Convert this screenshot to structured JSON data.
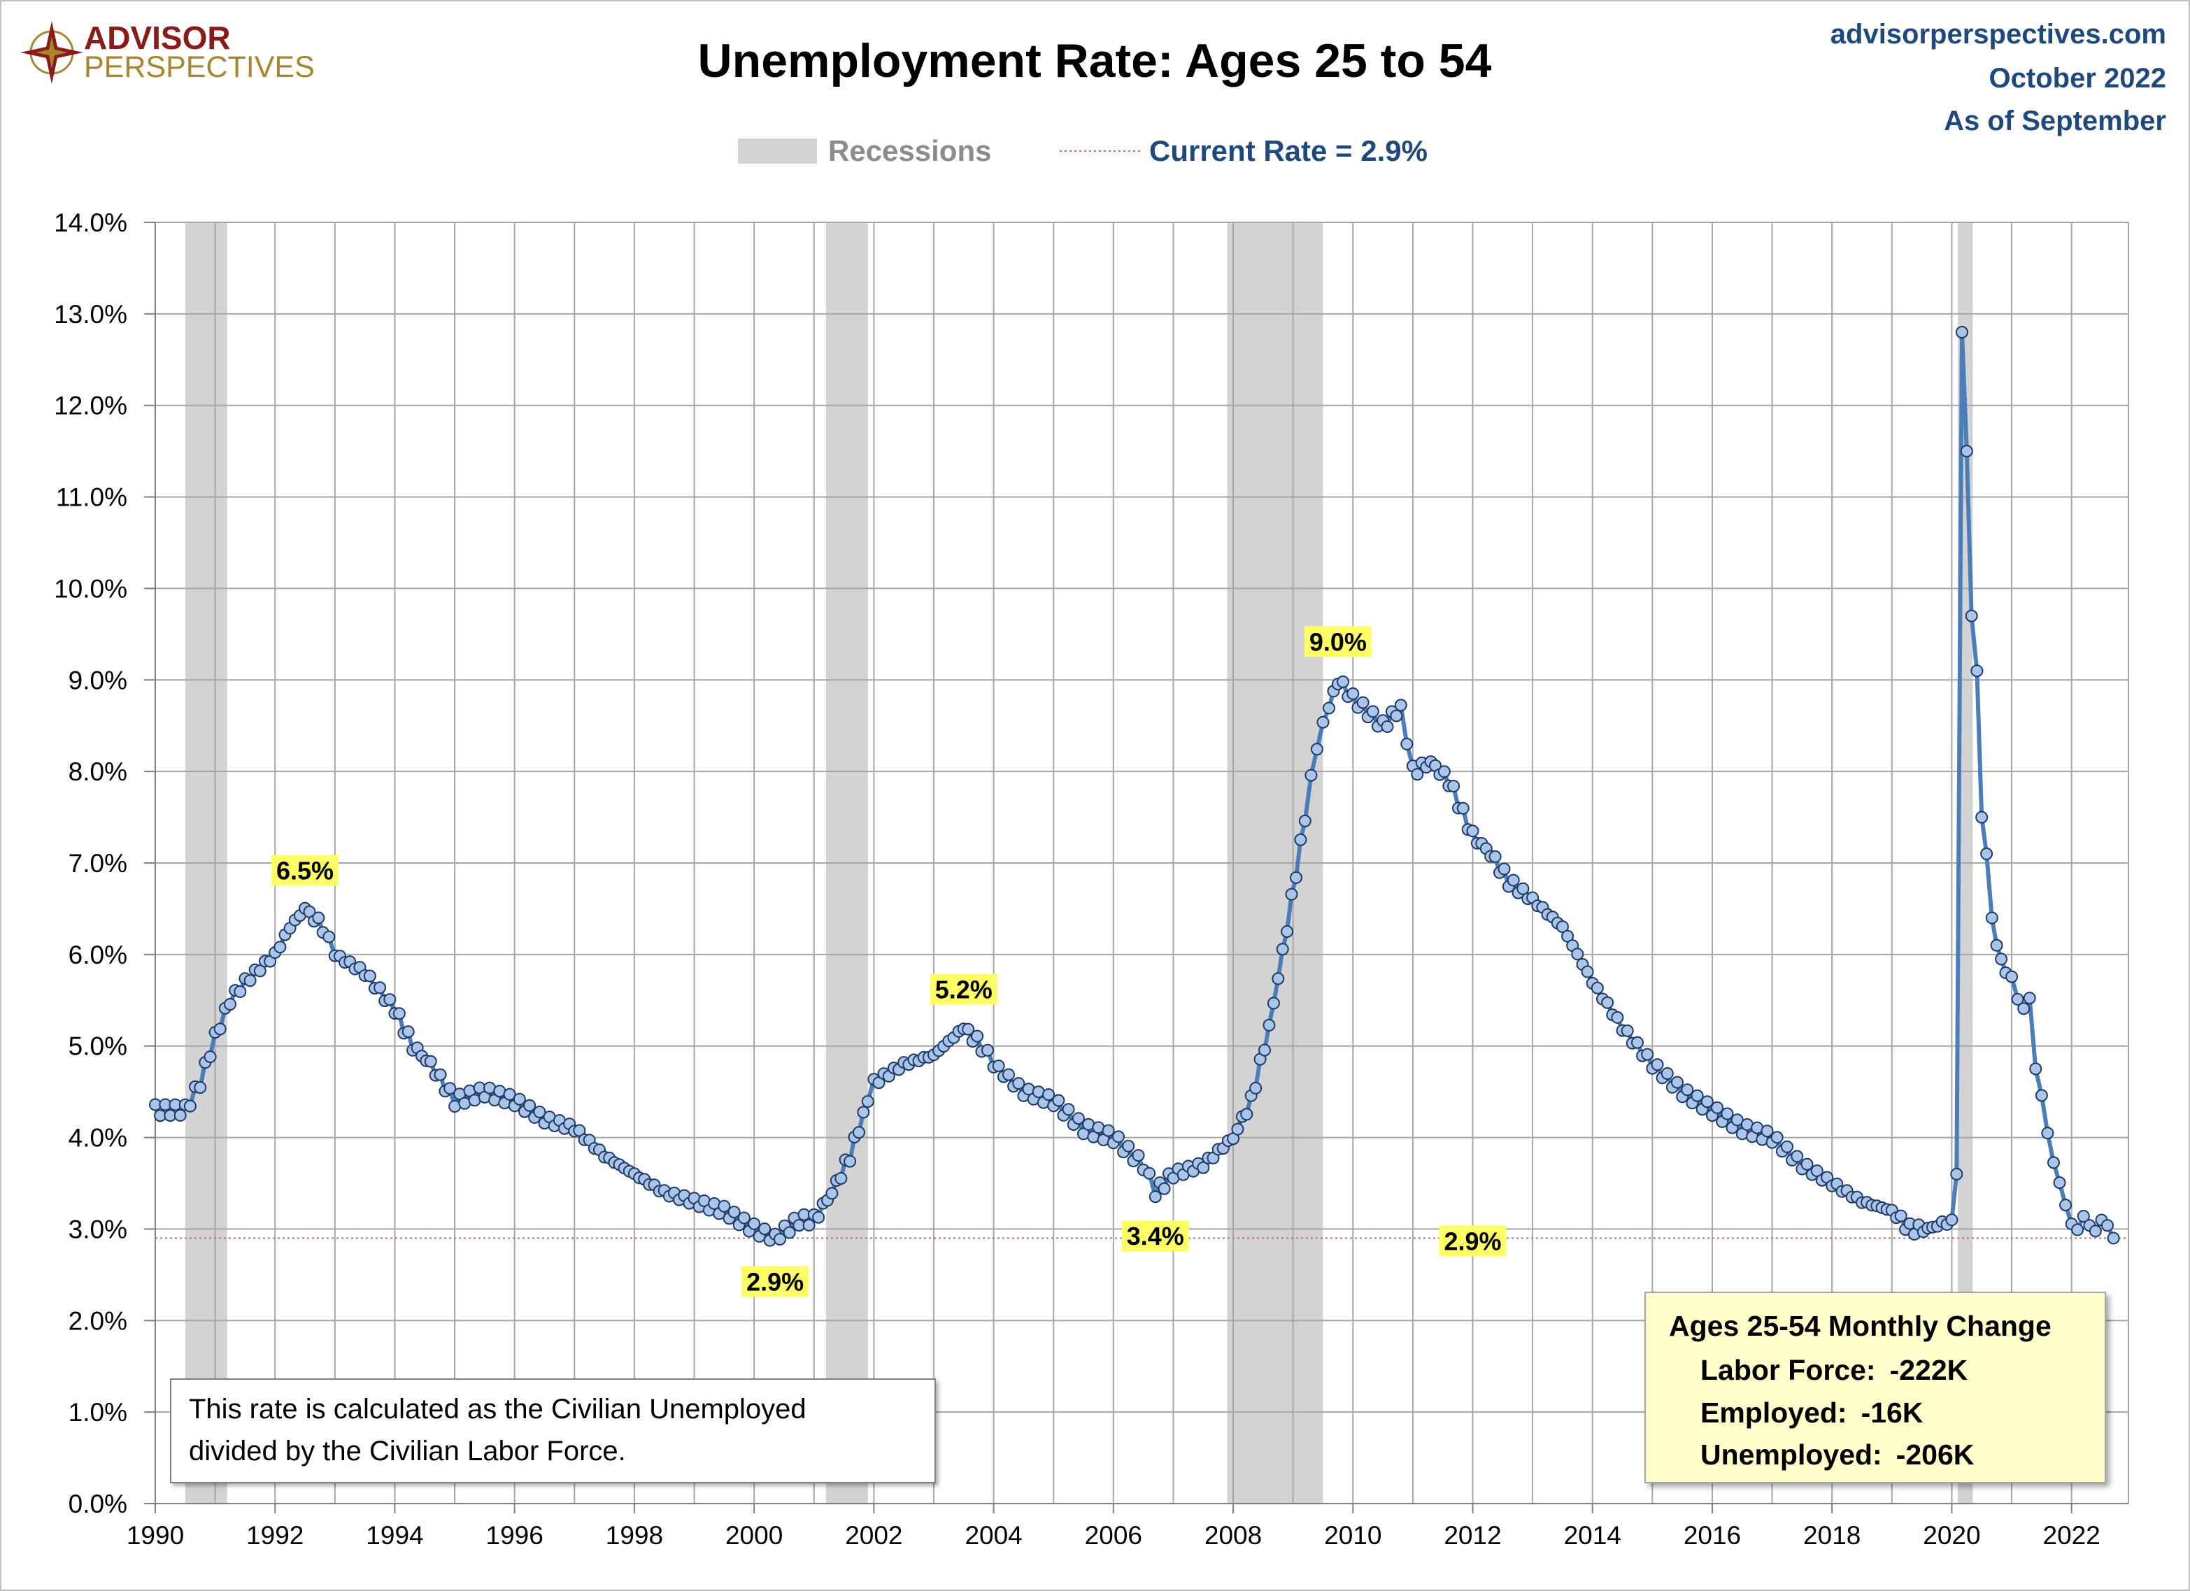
{
  "logo": {
    "line1": "ADVISOR",
    "line2": "PERSPECTIVES"
  },
  "source": {
    "site": "advisorperspectives.com",
    "date": "October 2022",
    "as_of": "As of September"
  },
  "colors": {
    "line": "#4a7ebb",
    "marker_fill": "#a9c6ea",
    "marker_stroke": "#1f3864",
    "recession": "#d3d3d3",
    "grid": "#a6a6a6",
    "title_blue": "#1f497d",
    "callout_bg": "#ffff66",
    "box_bg": "#ffffcc",
    "current_line": "#c0707a",
    "logo_red": "#8b1a1a",
    "logo_gold": "#a8862f"
  },
  "chart_data": {
    "type": "line",
    "title": "Unemployment Rate: Ages 25 to 54",
    "xlabel": "",
    "ylabel": "",
    "xlim": [
      1990,
      2022.95
    ],
    "ylim": [
      0,
      14
    ],
    "y_ticks": [
      0,
      1,
      2,
      3,
      4,
      5,
      6,
      7,
      8,
      9,
      10,
      11,
      12,
      13,
      14
    ],
    "y_tick_labels": [
      "0.0%",
      "1.0%",
      "2.0%",
      "3.0%",
      "4.0%",
      "5.0%",
      "6.0%",
      "7.0%",
      "8.0%",
      "9.0%",
      "10.0%",
      "11.0%",
      "12.0%",
      "13.0%",
      "14.0%"
    ],
    "x_ticks": [
      1990,
      1992,
      1994,
      1996,
      1998,
      2000,
      2002,
      2004,
      2006,
      2008,
      2010,
      2012,
      2014,
      2016,
      2018,
      2020,
      2022
    ],
    "x_tick_labels": [
      "1990",
      "1992",
      "1994",
      "1996",
      "1998",
      "2000",
      "2002",
      "2004",
      "2006",
      "2008",
      "2010",
      "2012",
      "2014",
      "2016",
      "2018",
      "2020",
      "2022"
    ],
    "grid": true,
    "legend": {
      "recessions": "Recessions",
      "current": "Current Rate = 2.9%"
    },
    "current_rate": 2.9,
    "recessions": [
      [
        1990.5,
        1991.2
      ],
      [
        2001.2,
        2001.9
      ],
      [
        2007.9,
        2009.5
      ],
      [
        2020.1,
        2020.35
      ]
    ],
    "callouts": [
      {
        "label": "6.5%",
        "x": 1992.5,
        "y": 6.5,
        "pos": "above"
      },
      {
        "label": "2.9%",
        "x": 2000.35,
        "y": 2.9,
        "pos": "below"
      },
      {
        "label": "5.2%",
        "x": 2003.5,
        "y": 5.2,
        "pos": "above"
      },
      {
        "label": "3.4%",
        "x": 2006.7,
        "y": 3.4,
        "pos": "below"
      },
      {
        "label": "9.0%",
        "x": 2009.75,
        "y": 9.0,
        "pos": "above"
      },
      {
        "label": "2.9%",
        "x": 2012.0,
        "y": 2.9,
        "pos": "inline"
      }
    ],
    "series": [
      {
        "name": "Unemployment Rate: Ages 25 to 54",
        "anchors": [
          [
            1990.0,
            4.3
          ],
          [
            1990.5,
            4.3
          ],
          [
            1990.75,
            4.6
          ],
          [
            1991.0,
            5.1
          ],
          [
            1991.25,
            5.5
          ],
          [
            1991.5,
            5.7
          ],
          [
            1992.0,
            6.0
          ],
          [
            1992.25,
            6.3
          ],
          [
            1992.5,
            6.5
          ],
          [
            1992.8,
            6.3
          ],
          [
            1993.0,
            6.0
          ],
          [
            1993.5,
            5.8
          ],
          [
            1994.0,
            5.4
          ],
          [
            1994.3,
            5.0
          ],
          [
            1994.6,
            4.8
          ],
          [
            1995.0,
            4.4
          ],
          [
            1995.5,
            4.5
          ],
          [
            1996.0,
            4.4
          ],
          [
            1996.5,
            4.2
          ],
          [
            1997.0,
            4.1
          ],
          [
            1997.5,
            3.8
          ],
          [
            1998.0,
            3.6
          ],
          [
            1998.5,
            3.4
          ],
          [
            1999.0,
            3.3
          ],
          [
            1999.5,
            3.2
          ],
          [
            2000.0,
            3.0
          ],
          [
            2000.35,
            2.9
          ],
          [
            2000.75,
            3.1
          ],
          [
            2001.0,
            3.1
          ],
          [
            2001.3,
            3.4
          ],
          [
            2001.6,
            3.8
          ],
          [
            2001.9,
            4.4
          ],
          [
            2002.0,
            4.6
          ],
          [
            2002.5,
            4.8
          ],
          [
            2003.0,
            4.9
          ],
          [
            2003.5,
            5.2
          ],
          [
            2003.8,
            5.0
          ],
          [
            2004.0,
            4.8
          ],
          [
            2004.5,
            4.5
          ],
          [
            2005.0,
            4.4
          ],
          [
            2005.5,
            4.1
          ],
          [
            2006.0,
            4.0
          ],
          [
            2006.5,
            3.7
          ],
          [
            2006.7,
            3.4
          ],
          [
            2007.0,
            3.6
          ],
          [
            2007.5,
            3.7
          ],
          [
            2008.0,
            4.0
          ],
          [
            2008.3,
            4.4
          ],
          [
            2008.6,
            5.2
          ],
          [
            2008.9,
            6.3
          ],
          [
            2009.2,
            7.5
          ],
          [
            2009.4,
            8.3
          ],
          [
            2009.6,
            8.7
          ],
          [
            2009.75,
            9.0
          ],
          [
            2010.0,
            8.8
          ],
          [
            2010.5,
            8.5
          ],
          [
            2010.8,
            8.7
          ],
          [
            2011.0,
            8.0
          ],
          [
            2011.3,
            8.1
          ],
          [
            2011.6,
            7.9
          ],
          [
            2012.0,
            7.3
          ],
          [
            2012.3,
            7.1
          ],
          [
            2012.6,
            6.8
          ],
          [
            2013.0,
            6.6
          ],
          [
            2013.5,
            6.3
          ],
          [
            2014.0,
            5.7
          ],
          [
            2014.5,
            5.2
          ],
          [
            2015.0,
            4.8
          ],
          [
            2015.5,
            4.5
          ],
          [
            2016.0,
            4.3
          ],
          [
            2016.5,
            4.1
          ],
          [
            2017.0,
            4.0
          ],
          [
            2017.5,
            3.7
          ],
          [
            2018.0,
            3.5
          ],
          [
            2018.5,
            3.3
          ],
          [
            2019.0,
            3.2
          ],
          [
            2019.3,
            3.0
          ],
          [
            2019.6,
            3.0
          ],
          [
            2020.0,
            3.1
          ],
          [
            2020.08,
            3.6
          ],
          [
            2020.17,
            12.8
          ],
          [
            2020.25,
            11.5
          ],
          [
            2020.33,
            9.7
          ],
          [
            2020.42,
            9.1
          ],
          [
            2020.5,
            7.5
          ],
          [
            2020.58,
            7.1
          ],
          [
            2020.67,
            6.4
          ],
          [
            2020.75,
            6.1
          ],
          [
            2020.9,
            5.8
          ],
          [
            2021.0,
            5.7
          ],
          [
            2021.2,
            5.4
          ],
          [
            2021.3,
            5.5
          ],
          [
            2021.4,
            4.8
          ],
          [
            2021.5,
            4.4
          ],
          [
            2021.6,
            4.1
          ],
          [
            2021.7,
            3.7
          ],
          [
            2021.8,
            3.5
          ],
          [
            2021.9,
            3.3
          ],
          [
            2022.0,
            3.0
          ],
          [
            2022.2,
            3.1
          ],
          [
            2022.4,
            3.0
          ],
          [
            2022.6,
            3.1
          ],
          [
            2022.7,
            2.9
          ]
        ]
      }
    ]
  },
  "note": {
    "line1": "This rate is calculated as the Civilian Unemployed",
    "line2": "divided by the Civilian Labor Force."
  },
  "change_box": {
    "title": "Ages 25-54 Monthly Change",
    "rows": [
      {
        "label": "Labor Force:",
        "value": "-222K"
      },
      {
        "label": "Employed:",
        "value": "-16K"
      },
      {
        "label": "Unemployed:",
        "value": "-206K"
      }
    ]
  }
}
